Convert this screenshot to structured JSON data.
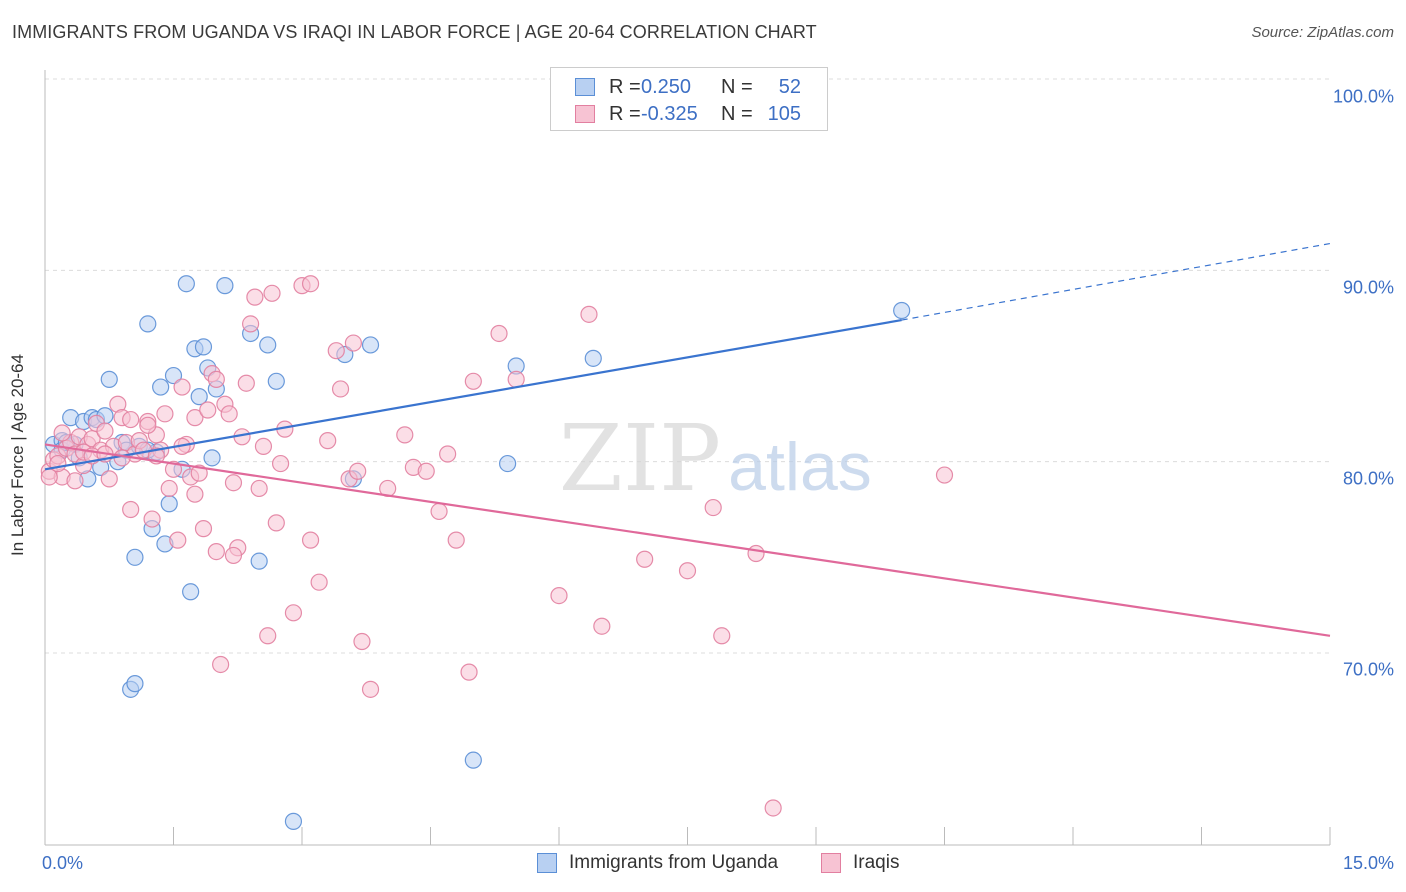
{
  "title": "IMMIGRANTS FROM UGANDA VS IRAQI IN LABOR FORCE | AGE 20-64 CORRELATION CHART",
  "source": "Source: ZipAtlas.com",
  "watermark": {
    "zip": "ZIP",
    "atlas": "atlas"
  },
  "legend": {
    "rows": [
      {
        "r_label": "R =",
        "r_value": "0.250",
        "n_label": "N =",
        "n_value": "52",
        "color": "#5b8fd6",
        "fill": "#b8d0f2"
      },
      {
        "r_label": "R =",
        "r_value": "-0.325",
        "n_label": "N =",
        "n_value": "105",
        "color": "#e27fa0",
        "fill": "#f7c3d3"
      }
    ],
    "bottom": [
      {
        "label": "Immigrants from Uganda",
        "color": "#5b8fd6",
        "fill": "#b8d0f2"
      },
      {
        "label": "Iraqis",
        "color": "#e27fa0",
        "fill": "#f7c3d3"
      }
    ]
  },
  "axes": {
    "ylabel": "In Labor Force | Age 20-64",
    "xtick_left": "0.0%",
    "xtick_right": "15.0%",
    "yticks": [
      "100.0%",
      "90.0%",
      "80.0%",
      "70.0%"
    ]
  },
  "chart_data": {
    "type": "scatter",
    "title": "IMMIGRANTS FROM UGANDA VS IRAQI IN LABOR FORCE | AGE 20-64 CORRELATION CHART",
    "xlabel": "",
    "ylabel": "In Labor Force | Age 20-64",
    "xlim": [
      0,
      15
    ],
    "ylim": [
      60,
      104
    ],
    "grid": true,
    "legend_position": "top-center",
    "series": [
      {
        "name": "Immigrants from Uganda",
        "color": "#5b8fd6",
        "fill": "#b8d0f2",
        "trend": {
          "x0": 0,
          "y0": 79.6,
          "x1": 10.0,
          "y1": 87.4,
          "dash_to_x": 15.0,
          "dash_to_y": 91.4
        },
        "points": [
          [
            0.1,
            80.9
          ],
          [
            0.2,
            81.1
          ],
          [
            0.3,
            82.3
          ],
          [
            0.35,
            80.9
          ],
          [
            0.4,
            80.2
          ],
          [
            0.45,
            82.1
          ],
          [
            0.5,
            79.1
          ],
          [
            0.55,
            82.3
          ],
          [
            0.6,
            82.2
          ],
          [
            0.65,
            79.7
          ],
          [
            0.7,
            82.4
          ],
          [
            0.75,
            84.3
          ],
          [
            0.85,
            80.0
          ],
          [
            0.9,
            81.0
          ],
          [
            0.95,
            80.6
          ],
          [
            1.0,
            68.1
          ],
          [
            1.05,
            68.4
          ],
          [
            1.1,
            80.8
          ],
          [
            1.05,
            75.0
          ],
          [
            1.2,
            87.2
          ],
          [
            1.25,
            76.5
          ],
          [
            1.3,
            80.5
          ],
          [
            1.35,
            83.9
          ],
          [
            1.4,
            75.7
          ],
          [
            1.45,
            77.8
          ],
          [
            1.5,
            84.5
          ],
          [
            1.6,
            79.6
          ],
          [
            1.65,
            89.3
          ],
          [
            1.7,
            73.2
          ],
          [
            1.75,
            85.9
          ],
          [
            1.8,
            83.4
          ],
          [
            1.85,
            86.0
          ],
          [
            1.9,
            84.9
          ],
          [
            1.95,
            80.2
          ],
          [
            2.0,
            83.8
          ],
          [
            2.1,
            89.2
          ],
          [
            2.4,
            86.7
          ],
          [
            2.5,
            74.8
          ],
          [
            2.6,
            86.1
          ],
          [
            2.7,
            84.2
          ],
          [
            2.9,
            61.2
          ],
          [
            3.5,
            85.6
          ],
          [
            3.6,
            79.1
          ],
          [
            3.8,
            86.1
          ],
          [
            5.0,
            64.4
          ],
          [
            5.4,
            79.9
          ],
          [
            5.5,
            85.0
          ],
          [
            6.4,
            85.4
          ],
          [
            10.0,
            87.9
          ],
          [
            1.2,
            80.6
          ],
          [
            0.2,
            80.6
          ],
          [
            0.25,
            81.0
          ]
        ]
      },
      {
        "name": "Iraqis",
        "color": "#e27fa0",
        "fill": "#f7c3d3",
        "trend": {
          "x0": 0,
          "y0": 80.9,
          "x1": 15.0,
          "y1": 70.9
        },
        "points": [
          [
            0.05,
            79.5
          ],
          [
            0.1,
            80.1
          ],
          [
            0.15,
            80.3
          ],
          [
            0.2,
            79.2
          ],
          [
            0.25,
            80.7
          ],
          [
            0.3,
            81.0
          ],
          [
            0.35,
            80.4
          ],
          [
            0.4,
            81.3
          ],
          [
            0.45,
            79.8
          ],
          [
            0.5,
            80.9
          ],
          [
            0.55,
            81.2
          ],
          [
            0.6,
            82.0
          ],
          [
            0.65,
            80.6
          ],
          [
            0.7,
            81.6
          ],
          [
            0.75,
            79.1
          ],
          [
            0.8,
            80.8
          ],
          [
            0.85,
            83.0
          ],
          [
            0.9,
            82.3
          ],
          [
            0.95,
            81.0
          ],
          [
            1.0,
            77.5
          ],
          [
            1.05,
            80.4
          ],
          [
            1.1,
            81.1
          ],
          [
            1.15,
            80.6
          ],
          [
            1.2,
            82.1
          ],
          [
            1.25,
            77.0
          ],
          [
            1.3,
            81.4
          ],
          [
            1.35,
            80.6
          ],
          [
            1.4,
            82.5
          ],
          [
            1.45,
            78.6
          ],
          [
            1.5,
            79.6
          ],
          [
            1.55,
            75.9
          ],
          [
            1.6,
            83.9
          ],
          [
            1.65,
            80.9
          ],
          [
            1.7,
            79.2
          ],
          [
            1.75,
            82.3
          ],
          [
            1.8,
            79.4
          ],
          [
            1.85,
            76.5
          ],
          [
            1.9,
            82.7
          ],
          [
            1.95,
            84.6
          ],
          [
            2.0,
            75.3
          ],
          [
            2.05,
            69.4
          ],
          [
            2.1,
            83.0
          ],
          [
            2.15,
            82.5
          ],
          [
            2.2,
            78.9
          ],
          [
            2.25,
            75.5
          ],
          [
            2.3,
            81.3
          ],
          [
            2.35,
            84.1
          ],
          [
            2.4,
            87.2
          ],
          [
            2.45,
            88.6
          ],
          [
            2.5,
            78.6
          ],
          [
            2.55,
            80.8
          ],
          [
            2.6,
            70.9
          ],
          [
            2.65,
            88.8
          ],
          [
            2.7,
            76.8
          ],
          [
            2.75,
            79.9
          ],
          [
            2.8,
            81.7
          ],
          [
            2.9,
            72.1
          ],
          [
            3.0,
            89.2
          ],
          [
            3.1,
            75.9
          ],
          [
            3.2,
            73.7
          ],
          [
            3.3,
            81.1
          ],
          [
            3.4,
            85.8
          ],
          [
            3.45,
            83.8
          ],
          [
            3.55,
            79.1
          ],
          [
            3.6,
            86.2
          ],
          [
            3.65,
            79.5
          ],
          [
            3.7,
            70.6
          ],
          [
            3.8,
            68.1
          ],
          [
            4.0,
            78.6
          ],
          [
            4.2,
            81.4
          ],
          [
            4.3,
            79.7
          ],
          [
            4.45,
            79.5
          ],
          [
            4.6,
            77.4
          ],
          [
            4.7,
            80.4
          ],
          [
            4.8,
            75.9
          ],
          [
            4.95,
            69.0
          ],
          [
            5.0,
            84.2
          ],
          [
            5.3,
            86.7
          ],
          [
            5.5,
            84.3
          ],
          [
            6.0,
            73.0
          ],
          [
            6.35,
            87.7
          ],
          [
            6.5,
            71.4
          ],
          [
            7.0,
            74.9
          ],
          [
            7.5,
            74.3
          ],
          [
            7.8,
            77.6
          ],
          [
            7.9,
            70.9
          ],
          [
            8.3,
            75.2
          ],
          [
            8.5,
            61.9
          ],
          [
            10.5,
            79.3
          ],
          [
            0.15,
            79.9
          ],
          [
            0.45,
            80.5
          ],
          [
            0.55,
            80.3
          ],
          [
            1.0,
            82.2
          ],
          [
            1.3,
            80.3
          ],
          [
            1.75,
            78.3
          ],
          [
            2.2,
            75.1
          ],
          [
            0.7,
            80.4
          ],
          [
            2.0,
            84.3
          ],
          [
            3.1,
            89.3
          ],
          [
            0.9,
            80.2
          ],
          [
            1.2,
            81.9
          ],
          [
            1.6,
            80.8
          ],
          [
            0.35,
            79.0
          ],
          [
            0.05,
            79.2
          ],
          [
            0.2,
            81.5
          ]
        ]
      }
    ]
  }
}
